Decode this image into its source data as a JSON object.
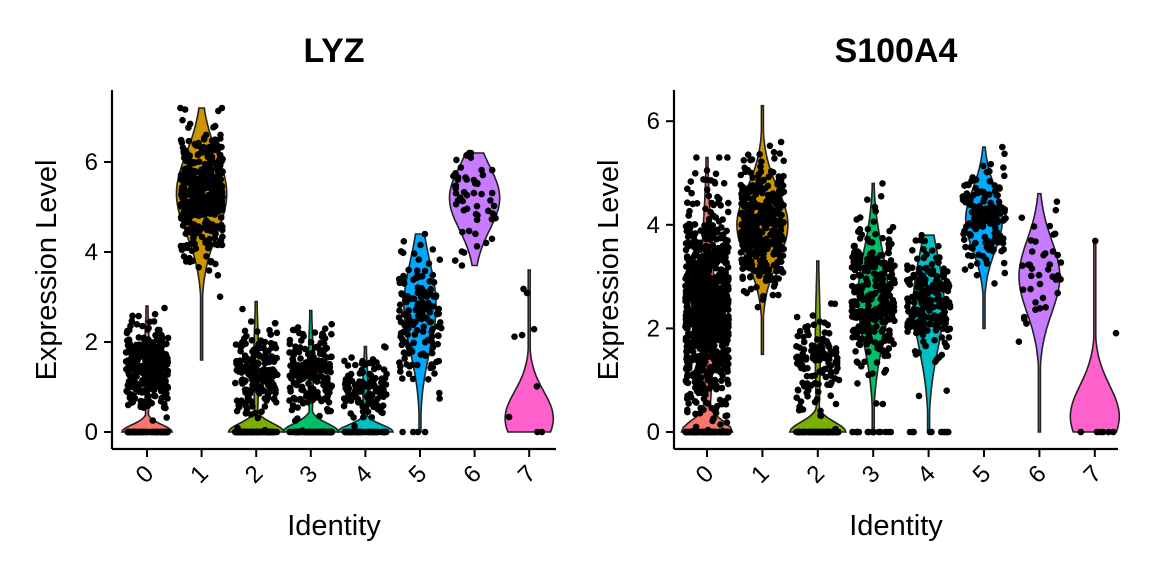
{
  "chart_data": [
    {
      "type": "violin",
      "title": "LYZ",
      "xlabel": "Identity",
      "ylabel": "Expression Level",
      "ylim": [
        -0.35,
        7.65
      ],
      "yticks": [
        0,
        2,
        4,
        6
      ],
      "categories": [
        "0",
        "1",
        "2",
        "3",
        "4",
        "5",
        "6",
        "7"
      ],
      "colors": [
        "#F8766D",
        "#CD9600",
        "#7CAE00",
        "#00BE67",
        "#00BFC4",
        "#00A9FF",
        "#C77CFF",
        "#FF61CC"
      ],
      "violins": [
        {
          "min": 0,
          "max": 2.8,
          "mode": 0,
          "spike_w": 0.5,
          "spike_h": 0.5,
          "body_w": 0.05
        },
        {
          "min": 1.6,
          "max": 7.2,
          "mode": 5.3,
          "body_w": 0.5,
          "sd": 0.9
        },
        {
          "min": 0,
          "max": 2.9,
          "mode": 0,
          "spike_w": 0.55,
          "spike_h": 0.6,
          "body_w": 0.05
        },
        {
          "min": 0,
          "max": 2.7,
          "mode": 0,
          "spike_w": 0.55,
          "spike_h": 0.6,
          "body_w": 0.05
        },
        {
          "min": 0,
          "max": 1.9,
          "mode": 0,
          "spike_w": 0.55,
          "spike_h": 0.5,
          "body_w": 0.05
        },
        {
          "min": 0,
          "max": 4.4,
          "mode": 2.8,
          "body_w": 0.32,
          "sd": 1.0
        },
        {
          "min": 3.7,
          "max": 6.2,
          "mode": 5.2,
          "body_w": 0.5,
          "sd": 0.7
        },
        {
          "min": 0,
          "max": 3.6,
          "mode": 0.3,
          "body_w": 0.48,
          "sd": 0.6
        }
      ],
      "points": [
        {
          "n": 380,
          "zero_frac": 0.18,
          "mean": 1.4,
          "sd": 0.45,
          "min": 0,
          "max": 2.8
        },
        {
          "n": 420,
          "zero_frac": 0.0,
          "mean": 5.3,
          "sd": 0.7,
          "min": 1.6,
          "max": 7.2
        },
        {
          "n": 300,
          "zero_frac": 0.3,
          "mean": 1.4,
          "sd": 0.5,
          "min": 0,
          "max": 2.9
        },
        {
          "n": 280,
          "zero_frac": 0.3,
          "mean": 1.3,
          "sd": 0.45,
          "min": 0,
          "max": 2.7
        },
        {
          "n": 180,
          "zero_frac": 0.3,
          "mean": 1.0,
          "sd": 0.35,
          "min": 0,
          "max": 1.9
        },
        {
          "n": 150,
          "zero_frac": 0.03,
          "mean": 2.7,
          "sd": 0.8,
          "min": 0,
          "max": 4.4
        },
        {
          "n": 55,
          "zero_frac": 0.0,
          "mean": 5.1,
          "sd": 0.55,
          "min": 3.7,
          "max": 6.2
        },
        {
          "n": 9,
          "zero_frac": 0.45,
          "mean": 2.0,
          "sd": 1.0,
          "min": 0,
          "max": 3.6
        }
      ]
    },
    {
      "type": "violin",
      "title": "S100A4",
      "xlabel": "Identity",
      "ylabel": "Expression Level",
      "ylim": [
        -0.25,
        6.6
      ],
      "yticks": [
        0,
        2,
        4,
        6
      ],
      "categories": [
        "0",
        "1",
        "2",
        "3",
        "4",
        "5",
        "6",
        "7"
      ],
      "colors": [
        "#F8766D",
        "#CD9600",
        "#7CAE00",
        "#00BE67",
        "#00BFC4",
        "#00A9FF",
        "#C77CFF",
        "#FF61CC"
      ],
      "violins": [
        {
          "min": 0,
          "max": 5.3,
          "mode": 0.1,
          "spike_w": 0.5,
          "spike_h": 0.7,
          "body_w": 0.15,
          "sd": 1.4,
          "body_mode": 2.3
        },
        {
          "min": 1.5,
          "max": 6.3,
          "mode": 4.0,
          "body_w": 0.5,
          "sd": 0.7
        },
        {
          "min": 0,
          "max": 3.3,
          "mode": 0,
          "spike_w": 0.55,
          "spike_h": 0.6,
          "body_w": 0.05
        },
        {
          "min": 0,
          "max": 4.8,
          "mode": 2.6,
          "body_w": 0.3,
          "sd": 0.9
        },
        {
          "min": 0,
          "max": 3.8,
          "mode": 2.5,
          "body_w": 0.3,
          "sd": 0.9
        },
        {
          "min": 2.0,
          "max": 5.5,
          "mode": 4.1,
          "body_w": 0.36,
          "sd": 0.6
        },
        {
          "min": 0,
          "max": 4.6,
          "mode": 3.0,
          "body_w": 0.4,
          "sd": 0.7
        },
        {
          "min": 0,
          "max": 3.7,
          "mode": 0.3,
          "body_w": 0.48,
          "sd": 0.6
        }
      ],
      "points": [
        {
          "n": 900,
          "zero_frac": 0.1,
          "mean": 2.4,
          "sd": 1.0,
          "min": 0,
          "max": 5.3
        },
        {
          "n": 380,
          "zero_frac": 0.0,
          "mean": 4.0,
          "sd": 0.6,
          "min": 1.5,
          "max": 6.3
        },
        {
          "n": 200,
          "zero_frac": 0.35,
          "mean": 1.3,
          "sd": 0.5,
          "min": 0,
          "max": 3.3
        },
        {
          "n": 300,
          "zero_frac": 0.05,
          "mean": 2.6,
          "sd": 0.7,
          "min": 0,
          "max": 4.8
        },
        {
          "n": 220,
          "zero_frac": 0.05,
          "mean": 2.5,
          "sd": 0.6,
          "min": 0,
          "max": 3.8
        },
        {
          "n": 150,
          "zero_frac": 0.0,
          "mean": 4.1,
          "sd": 0.5,
          "min": 2.0,
          "max": 5.5
        },
        {
          "n": 40,
          "zero_frac": 0.02,
          "mean": 3.1,
          "sd": 0.6,
          "min": 0,
          "max": 4.6
        },
        {
          "n": 8,
          "zero_frac": 0.55,
          "mean": 2.3,
          "sd": 1.0,
          "min": 0,
          "max": 3.7
        }
      ]
    }
  ]
}
